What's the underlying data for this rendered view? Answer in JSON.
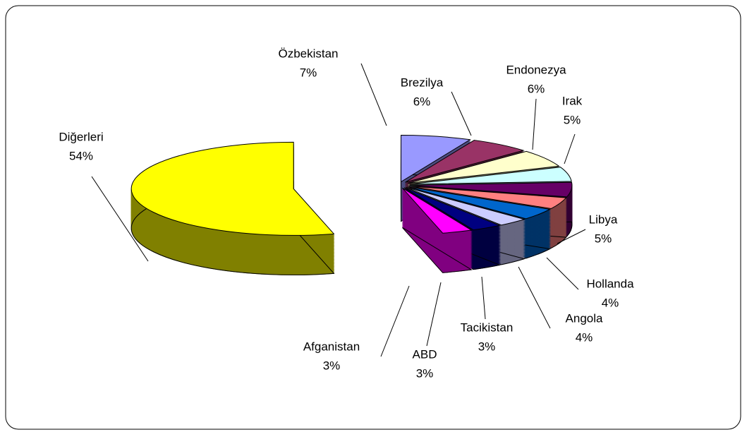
{
  "chart_data": {
    "type": "pie",
    "categories": [
      "Özbekistan",
      "Brezilya",
      "Endonezya",
      "Irak",
      "Libya",
      "Hollanda",
      "Angola",
      "Tacikistan",
      "ABD",
      "Afganistan",
      "Diğerleri"
    ],
    "values": [
      7,
      6,
      6,
      5,
      5,
      4,
      4,
      3,
      3,
      3,
      54
    ],
    "value_labels": [
      "7%",
      "6%",
      "6%",
      "5%",
      "5%",
      "4%",
      "4%",
      "3%",
      "3%",
      "3%",
      "54%"
    ],
    "colors": [
      "#9999FF",
      "#993366",
      "#FFFFCC",
      "#CCFFFF",
      "#660066",
      "#FF8080",
      "#0066CC",
      "#CCCCFF",
      "#000080",
      "#FF00FF",
      "#FFFF00"
    ]
  }
}
